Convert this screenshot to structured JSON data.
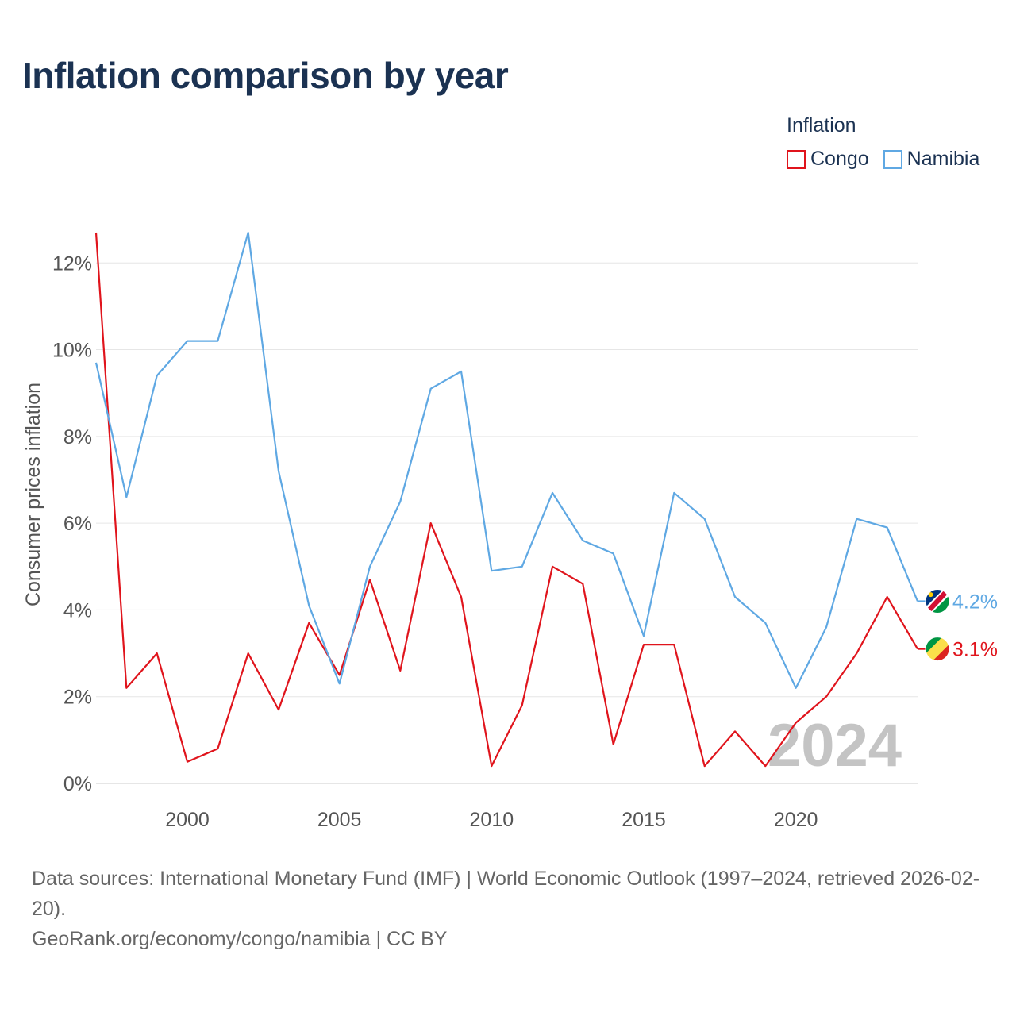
{
  "title": "Inflation comparison by year",
  "legend": {
    "title": "Inflation",
    "items": [
      {
        "name": "Congo",
        "color": "#e0141c"
      },
      {
        "name": "Namibia",
        "color": "#5fa8e3"
      }
    ]
  },
  "watermark_year": "2024",
  "end_labels": {
    "congo": "3.1%",
    "namibia": "4.2%"
  },
  "footer": {
    "sources": "Data sources: International Monetary Fund (IMF) | World Economic Outlook (1997–2024, retrieved 2026-02-20).",
    "credit": "GeoRank.org/economy/congo/namibia | CC BY"
  },
  "chart_data": {
    "type": "line",
    "title": "Inflation comparison by year",
    "xlabel": "",
    "ylabel": "Consumer prices inflation",
    "xlim": [
      1997,
      2024
    ],
    "ylim": [
      0,
      12.7
    ],
    "x_ticks": [
      2000,
      2005,
      2010,
      2015,
      2020
    ],
    "y_ticks": [
      0,
      2,
      4,
      6,
      8,
      10,
      12
    ],
    "y_tick_labels": [
      "0%",
      "2%",
      "4%",
      "6%",
      "8%",
      "10%",
      "12%"
    ],
    "grid": true,
    "legend_position": "top-right",
    "x": [
      1997,
      1998,
      1999,
      2000,
      2001,
      2002,
      2003,
      2004,
      2005,
      2006,
      2007,
      2008,
      2009,
      2010,
      2011,
      2012,
      2013,
      2014,
      2015,
      2016,
      2017,
      2018,
      2019,
      2020,
      2021,
      2022,
      2023,
      2024
    ],
    "series": [
      {
        "name": "Congo",
        "color": "#e0141c",
        "values": [
          12.7,
          2.2,
          3.0,
          0.5,
          0.8,
          3.0,
          1.7,
          3.7,
          2.5,
          4.7,
          2.6,
          6.0,
          4.3,
          0.4,
          1.8,
          5.0,
          4.6,
          0.9,
          3.2,
          3.2,
          0.4,
          1.2,
          0.4,
          1.4,
          2.0,
          3.0,
          4.3,
          3.1
        ]
      },
      {
        "name": "Namibia",
        "color": "#5fa8e3",
        "values": [
          9.7,
          6.6,
          9.4,
          10.2,
          10.2,
          12.7,
          7.2,
          4.1,
          2.3,
          5.0,
          6.5,
          9.1,
          9.5,
          4.9,
          5.0,
          6.7,
          5.6,
          5.3,
          3.4,
          6.7,
          6.1,
          4.3,
          3.7,
          2.2,
          3.6,
          6.1,
          5.9,
          4.2
        ]
      }
    ]
  }
}
